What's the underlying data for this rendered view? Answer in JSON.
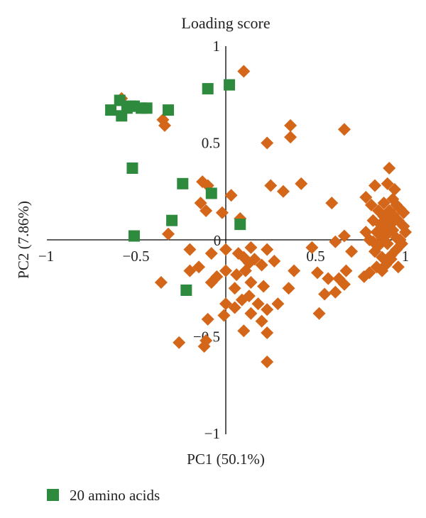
{
  "chart_data": {
    "type": "scatter",
    "title": "Loading score",
    "xlabel": "PC1 (50.1%)",
    "ylabel": "PC2 (7.86%)",
    "xlim": [
      -1,
      1
    ],
    "ylim": [
      -1,
      1
    ],
    "x_ticks": [
      {
        "value": -1,
        "label": "−1"
      },
      {
        "value": -0.5,
        "label": "−0.5"
      },
      {
        "value": 0,
        "label": "0"
      },
      {
        "value": 0.5,
        "label": "0.5"
      },
      {
        "value": 1,
        "label": "1"
      }
    ],
    "y_ticks": [
      {
        "value": 1,
        "label": "1"
      },
      {
        "value": 0.5,
        "label": "0.5"
      },
      {
        "value": -0.5,
        "label": "−0.5"
      },
      {
        "value": -1,
        "label": "−1"
      }
    ],
    "legend_position": "bottom-left",
    "grid": false,
    "series": [
      {
        "name": "20 amino acids",
        "marker": "square",
        "color": "#2e8b3e",
        "points": [
          [
            -0.64,
            0.67
          ],
          [
            -0.59,
            0.72
          ],
          [
            -0.58,
            0.64
          ],
          [
            -0.55,
            0.68
          ],
          [
            -0.53,
            0.69
          ],
          [
            -0.51,
            0.69
          ],
          [
            -0.47,
            0.68
          ],
          [
            -0.44,
            0.68
          ],
          [
            -0.32,
            0.67
          ],
          [
            -0.1,
            0.78
          ],
          [
            0.02,
            0.8
          ],
          [
            -0.52,
            0.37
          ],
          [
            -0.24,
            0.29
          ],
          [
            -0.08,
            0.24
          ],
          [
            -0.3,
            0.1
          ],
          [
            -0.51,
            0.02
          ],
          [
            0.08,
            0.08
          ],
          [
            -0.22,
            -0.26
          ]
        ]
      },
      {
        "marker": "diamond",
        "color": "#d4661a",
        "points": [
          [
            0.1,
            0.87
          ],
          [
            -0.58,
            0.73
          ],
          [
            -0.35,
            0.62
          ],
          [
            -0.34,
            0.59
          ],
          [
            0.23,
            0.5
          ],
          [
            0.36,
            0.59
          ],
          [
            0.36,
            0.53
          ],
          [
            0.66,
            0.57
          ],
          [
            0.91,
            0.37
          ],
          [
            -0.13,
            0.3
          ],
          [
            -0.1,
            0.28
          ],
          [
            0.25,
            0.28
          ],
          [
            0.32,
            0.25
          ],
          [
            0.42,
            0.29
          ],
          [
            0.83,
            0.28
          ],
          [
            0.9,
            0.29
          ],
          [
            0.94,
            0.26
          ],
          [
            0.59,
            0.19
          ],
          [
            -0.14,
            0.19
          ],
          [
            0.03,
            0.23
          ],
          [
            -0.11,
            0.15
          ],
          [
            -0.02,
            0.14
          ],
          [
            0.08,
            0.11
          ],
          [
            -0.32,
            0.03
          ],
          [
            0.78,
            0.22
          ],
          [
            0.81,
            0.18
          ],
          [
            0.85,
            0.15
          ],
          [
            0.88,
            0.19
          ],
          [
            0.93,
            0.21
          ],
          [
            0.95,
            0.18
          ],
          [
            0.97,
            0.16
          ],
          [
            0.99,
            0.14
          ],
          [
            0.82,
            0.1
          ],
          [
            0.86,
            0.08
          ],
          [
            0.88,
            0.12
          ],
          [
            0.91,
            0.09
          ],
          [
            0.93,
            0.13
          ],
          [
            0.96,
            0.1
          ],
          [
            0.99,
            0.07
          ],
          [
            1.0,
            0.04
          ],
          [
            0.84,
            0.04
          ],
          [
            0.87,
            0.01
          ],
          [
            0.9,
            0.03
          ],
          [
            0.93,
            0.05
          ],
          [
            0.95,
            0.01
          ],
          [
            0.98,
            -0.02
          ],
          [
            0.8,
            0.0
          ],
          [
            0.78,
            0.04
          ],
          [
            0.66,
            0.02
          ],
          [
            0.61,
            -0.01
          ],
          [
            0.48,
            -0.04
          ],
          [
            0.23,
            -0.05
          ],
          [
            0.07,
            -0.07
          ],
          [
            0.14,
            -0.04
          ],
          [
            0.0,
            -0.05
          ],
          [
            -0.2,
            -0.05
          ],
          [
            -0.08,
            -0.07
          ],
          [
            0.1,
            -0.09
          ],
          [
            0.16,
            -0.1
          ],
          [
            0.7,
            -0.06
          ],
          [
            0.83,
            -0.06
          ],
          [
            0.87,
            -0.09
          ],
          [
            0.92,
            -0.1
          ],
          [
            0.95,
            -0.05
          ],
          [
            0.89,
            -0.13
          ],
          [
            0.84,
            -0.14
          ],
          [
            0.8,
            -0.17
          ],
          [
            0.77,
            -0.19
          ],
          [
            0.67,
            -0.16
          ],
          [
            0.63,
            -0.2
          ],
          [
            0.57,
            -0.2
          ],
          [
            0.51,
            -0.17
          ],
          [
            0.38,
            -0.16
          ],
          [
            0.27,
            -0.11
          ],
          [
            0.2,
            -0.13
          ],
          [
            0.13,
            -0.12
          ],
          [
            0.11,
            -0.16
          ],
          [
            0.06,
            -0.18
          ],
          [
            0.0,
            -0.16
          ],
          [
            -0.05,
            -0.19
          ],
          [
            -0.15,
            -0.14
          ],
          [
            -0.2,
            -0.16
          ],
          [
            -0.36,
            -0.22
          ],
          [
            -0.08,
            -0.22
          ],
          [
            0.05,
            -0.25
          ],
          [
            0.14,
            -0.22
          ],
          [
            0.21,
            -0.24
          ],
          [
            0.35,
            -0.25
          ],
          [
            0.61,
            -0.27
          ],
          [
            0.66,
            -0.23
          ],
          [
            0.55,
            -0.28
          ],
          [
            0.0,
            -0.33
          ],
          [
            0.05,
            -0.35
          ],
          [
            0.09,
            -0.31
          ],
          [
            0.13,
            -0.29
          ],
          [
            0.18,
            -0.33
          ],
          [
            0.23,
            -0.36
          ],
          [
            0.29,
            -0.33
          ],
          [
            0.52,
            -0.38
          ],
          [
            -0.01,
            -0.39
          ],
          [
            0.14,
            -0.38
          ],
          [
            0.2,
            -0.42
          ],
          [
            -0.1,
            -0.41
          ],
          [
            0.1,
            -0.47
          ],
          [
            0.23,
            -0.48
          ],
          [
            -0.26,
            -0.53
          ],
          [
            -0.12,
            -0.55
          ],
          [
            -0.11,
            -0.52
          ],
          [
            0.23,
            -0.63
          ],
          [
            0.82,
            -0.01
          ],
          [
            0.85,
            -0.03
          ],
          [
            0.9,
            -0.02
          ],
          [
            0.88,
            0.06
          ],
          [
            0.91,
            0.15
          ],
          [
            0.94,
            0.1
          ],
          [
            0.97,
            0.0
          ],
          [
            0.96,
            -0.14
          ],
          [
            0.92,
            -0.08
          ],
          [
            0.87,
            -0.16
          ]
        ]
      }
    ]
  }
}
